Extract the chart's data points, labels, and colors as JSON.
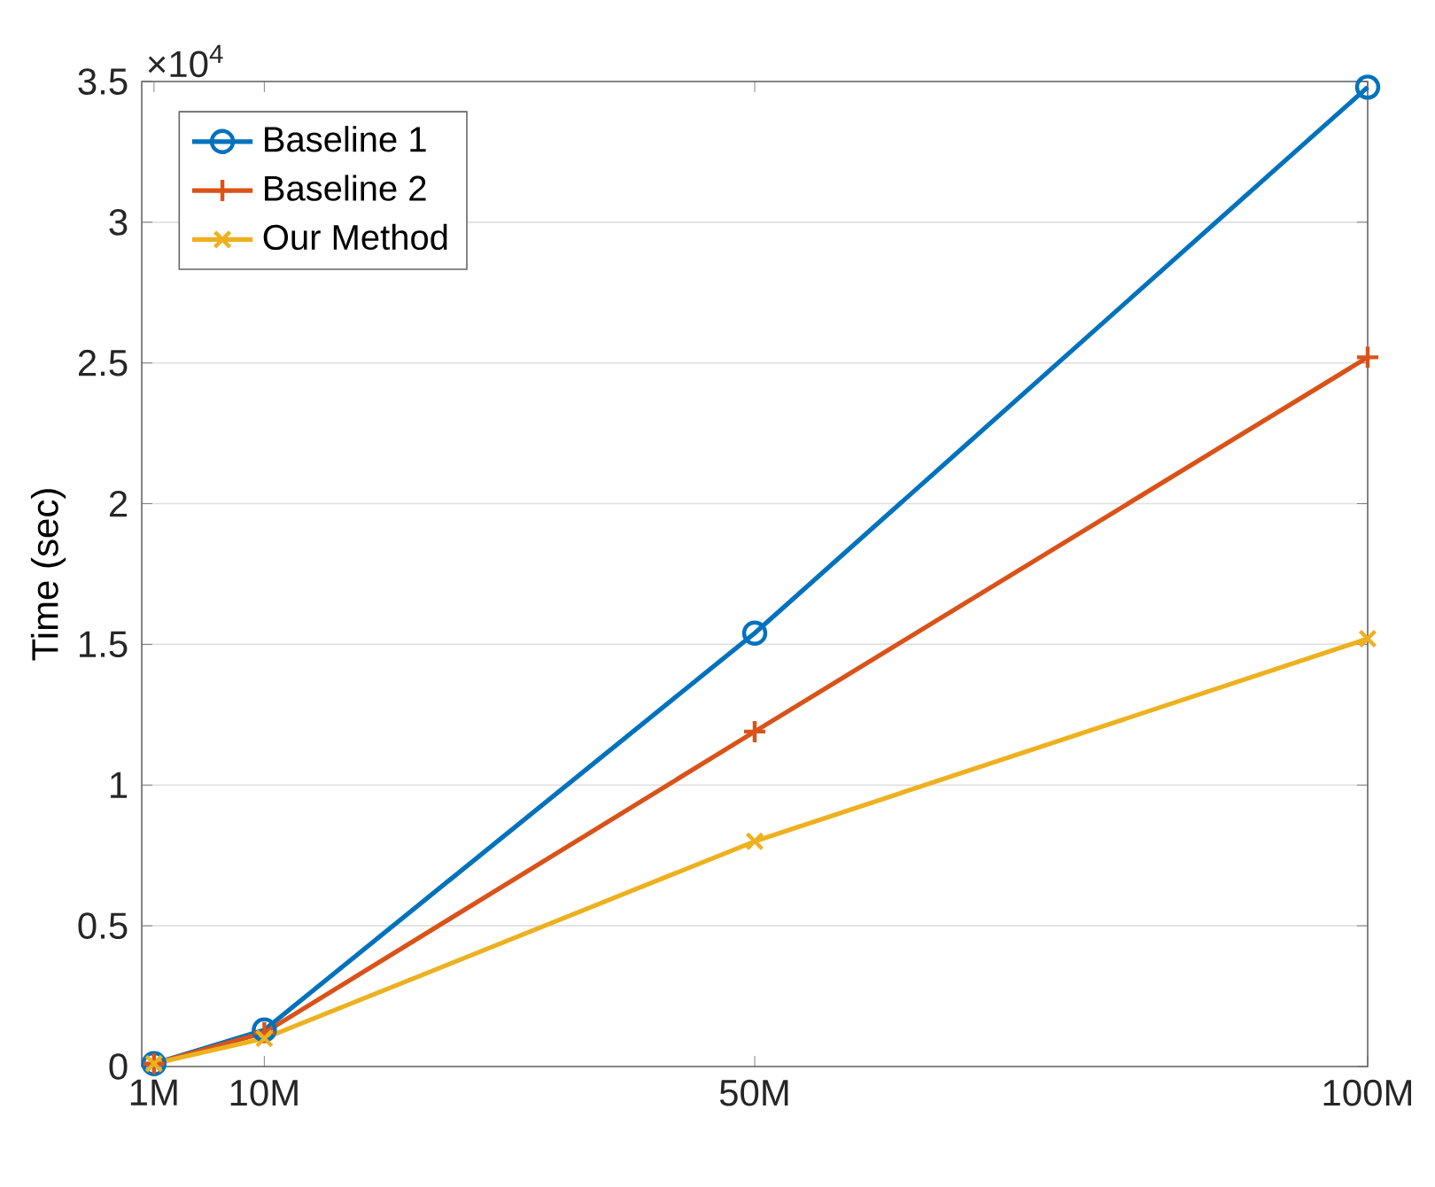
{
  "chart_data": {
    "type": "line",
    "ylabel": "Time (sec)",
    "annotations": [
      "×10$^{4}$"
    ],
    "x": [
      1,
      10,
      50,
      100
    ],
    "xlim": [
      0,
      100
    ],
    "xticks": [
      {
        "value": 1,
        "label": "1M"
      },
      {
        "value": 10,
        "label": "10M"
      },
      {
        "value": 50,
        "label": "50M"
      },
      {
        "value": 100,
        "label": "100M"
      }
    ],
    "ylim": [
      0,
      3.5
    ],
    "yticks": [
      0,
      0.5,
      1,
      1.5,
      2,
      2.5,
      3,
      3.5
    ],
    "grid": "y",
    "legend": "top left",
    "line_style": "solid",
    "series": [
      {
        "name": "Baseline 1",
        "color": "#0072bd",
        "marker": "circle",
        "values": [
          0.01,
          0.13,
          1.54,
          3.48
        ]
      },
      {
        "name": "Baseline 2",
        "color": "#d95319",
        "marker": "plus",
        "values": [
          0.01,
          0.12,
          1.19,
          2.52
        ]
      },
      {
        "name": "Our Method",
        "color": "#edb120",
        "marker": "cross",
        "values": [
          0.01,
          0.1,
          0.8,
          1.52
        ]
      }
    ]
  }
}
